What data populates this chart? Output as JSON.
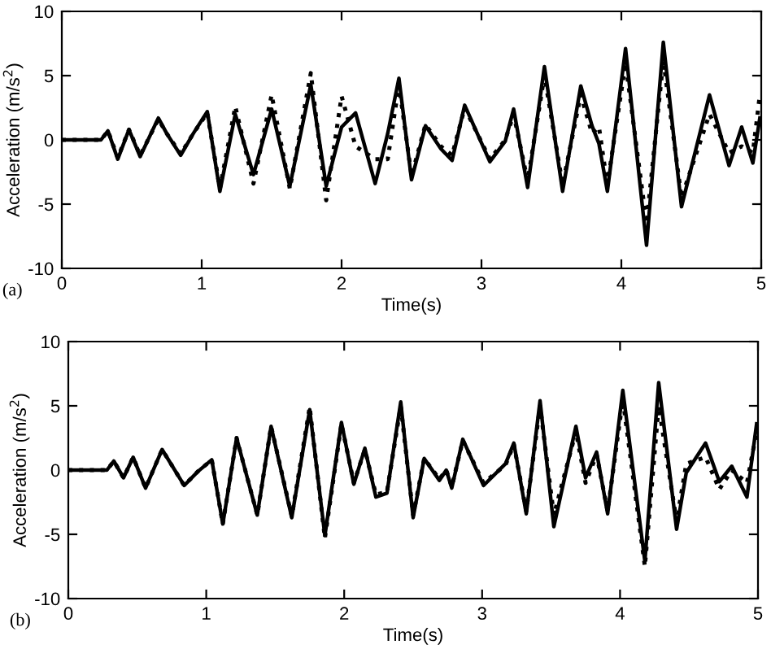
{
  "chart_data": [
    {
      "type": "line",
      "xlabel": "Time(s)",
      "ylabel": "Acceleration (m/s$^{2}$)",
      "annotations": [
        "(a)"
      ],
      "xlim": [
        0,
        5
      ],
      "ylim": [
        -10,
        10
      ],
      "xticks": [
        0,
        1,
        2,
        3,
        4,
        5
      ],
      "yticks": [
        -10,
        -5,
        0,
        5,
        10
      ],
      "grid": false,
      "marker": "none",
      "series": [
        {
          "color": "#000000",
          "line_style": "solid",
          "x": [
            0,
            0.28,
            0.33,
            0.4,
            0.48,
            0.56,
            0.69,
            0.75,
            0.85,
            0.94,
            1.04,
            1.13,
            1.24,
            1.37,
            1.5,
            1.63,
            1.78,
            1.89,
            2.0,
            2.1,
            2.24,
            2.33,
            2.41,
            2.5,
            2.6,
            2.71,
            2.79,
            2.88,
            3.06,
            3.17,
            3.23,
            3.33,
            3.45,
            3.58,
            3.71,
            3.79,
            3.84,
            3.9,
            4.03,
            4.18,
            4.3,
            4.43,
            4.63,
            4.77,
            4.86,
            4.94,
            4.99
          ],
          "values": [
            0,
            0,
            0.7,
            -1.5,
            0.8,
            -1.3,
            1.7,
            0.5,
            -1.2,
            0.5,
            2.2,
            -4.0,
            2.0,
            -2.7,
            2.4,
            -3.6,
            4.3,
            -3.6,
            1.0,
            2.1,
            -3.4,
            0.5,
            4.8,
            -3.1,
            1.1,
            -0.7,
            -1.6,
            2.7,
            -1.7,
            -0.1,
            2.4,
            -3.7,
            5.7,
            -4.0,
            4.2,
            1.1,
            -0.3,
            -4.0,
            7.1,
            -8.2,
            7.6,
            -5.2,
            3.5,
            -2.0,
            1.0,
            -1.8,
            1.7
          ]
        },
        {
          "color": "#000000",
          "line_style": "dotted",
          "x": [
            0,
            0.28,
            0.33,
            0.4,
            0.48,
            0.56,
            0.69,
            0.75,
            0.85,
            0.94,
            1.04,
            1.13,
            1.24,
            1.37,
            1.5,
            1.63,
            1.78,
            1.89,
            2.0,
            2.1,
            2.24,
            2.33,
            2.41,
            2.5,
            2.6,
            2.71,
            2.79,
            2.88,
            3.06,
            3.17,
            3.23,
            3.33,
            3.45,
            3.58,
            3.71,
            3.79,
            3.84,
            3.9,
            4.03,
            4.18,
            4.3,
            4.43,
            4.63,
            4.77,
            4.86,
            4.94,
            4.99
          ],
          "values": [
            0,
            0,
            0.7,
            -1.4,
            0.8,
            -1.2,
            1.6,
            0.5,
            -1.1,
            0.5,
            2.1,
            -3.8,
            2.6,
            -3.4,
            3.5,
            -3.8,
            5.2,
            -4.7,
            3.4,
            -0.5,
            -1.5,
            -1.5,
            4.3,
            -2.8,
            1.2,
            -0.5,
            -1.2,
            2.5,
            -1.5,
            0,
            2.0,
            -3.2,
            5.0,
            -3.5,
            3.5,
            0.5,
            1.0,
            -3.5,
            6.0,
            -6.5,
            6.2,
            -4.5,
            2.0,
            -1.0,
            -0.5,
            -1.0,
            3.5
          ]
        }
      ]
    },
    {
      "type": "line",
      "xlabel": "Time(s)",
      "ylabel": "Acceleration (m/s$^{2}$)",
      "annotations": [
        "(b)"
      ],
      "xlim": [
        0,
        5
      ],
      "ylim": [
        -10,
        10
      ],
      "xticks": [
        0,
        1,
        2,
        3,
        4,
        5
      ],
      "yticks": [
        -10,
        -5,
        0,
        5,
        10
      ],
      "grid": false,
      "marker": "none",
      "series": [
        {
          "color": "#000000",
          "line_style": "solid",
          "x": [
            0,
            0.28,
            0.33,
            0.4,
            0.47,
            0.56,
            0.68,
            0.84,
            0.94,
            1.04,
            1.12,
            1.22,
            1.37,
            1.47,
            1.62,
            1.75,
            1.86,
            1.98,
            2.07,
            2.15,
            2.23,
            2.31,
            2.41,
            2.5,
            2.58,
            2.69,
            2.74,
            2.78,
            2.86,
            3.01,
            3.17,
            3.23,
            3.32,
            3.42,
            3.52,
            3.68,
            3.75,
            3.83,
            3.91,
            4.02,
            4.18,
            4.28,
            4.41,
            4.48,
            4.62,
            4.72,
            4.81,
            4.92,
            4.99
          ],
          "values": [
            0,
            0,
            0.7,
            -0.6,
            1.0,
            -1.4,
            1.6,
            -1.2,
            -0.1,
            0.8,
            -4.2,
            2.5,
            -3.5,
            3.4,
            -3.7,
            4.7,
            -5.1,
            3.7,
            -1.1,
            1.7,
            -2.1,
            -1.8,
            5.3,
            -3.7,
            0.9,
            -0.8,
            0,
            -1.4,
            2.4,
            -1.2,
            0.5,
            2.1,
            -3.4,
            5.4,
            -4.4,
            3.4,
            -0.6,
            1.4,
            -3.4,
            6.2,
            -7.1,
            6.8,
            -4.6,
            -0.2,
            2.1,
            -0.9,
            0.3,
            -2.1,
            3.6
          ]
        },
        {
          "color": "#000000",
          "line_style": "dotted",
          "x": [
            0,
            0.28,
            0.33,
            0.4,
            0.47,
            0.56,
            0.68,
            0.84,
            0.94,
            1.04,
            1.12,
            1.22,
            1.37,
            1.47,
            1.62,
            1.75,
            1.86,
            1.98,
            2.07,
            2.15,
            2.23,
            2.31,
            2.41,
            2.5,
            2.58,
            2.69,
            2.74,
            2.78,
            2.86,
            3.01,
            3.17,
            3.23,
            3.32,
            3.42,
            3.52,
            3.68,
            3.75,
            3.83,
            3.91,
            4.02,
            4.18,
            4.28,
            4.41,
            4.48,
            4.62,
            4.72,
            4.81,
            4.92,
            4.99
          ],
          "values": [
            0,
            0,
            0.7,
            -0.6,
            1.0,
            -1.4,
            1.6,
            -1.2,
            -0.1,
            0.8,
            -4.2,
            2.5,
            -3.5,
            3.4,
            -3.6,
            4.9,
            -5.3,
            3.6,
            -1.0,
            1.6,
            -1.9,
            -1.7,
            5.0,
            -3.5,
            0.9,
            -0.7,
            0,
            -1.3,
            2.3,
            -1.0,
            0.4,
            2.0,
            -3.2,
            5.0,
            -3.5,
            3.0,
            -1.0,
            1.2,
            -3.2,
            5.5,
            -7.5,
            5.0,
            -4.0,
            0.5,
            1.0,
            -1.5,
            0.0,
            -1.0,
            3.0
          ]
        }
      ]
    }
  ]
}
